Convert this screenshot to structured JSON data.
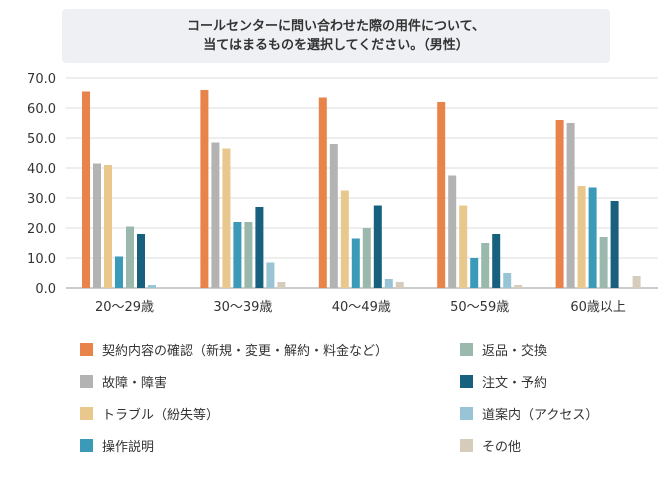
{
  "chart_data": {
    "type": "bar",
    "title_line1": "コールセンターに問い合わせた際の用件について、",
    "title_line2": "当てはまるものを選択してください。（男性）",
    "categories": [
      "20～29歳",
      "30～39歳",
      "40～49歳",
      "50～59歳",
      "60歳以上"
    ],
    "ylim": [
      0,
      70
    ],
    "yticks": [
      "0.0",
      "10.0",
      "20.0",
      "30.0",
      "40.0",
      "50.0",
      "60.0",
      "70.0"
    ],
    "grid": true,
    "legend_position": "bottom",
    "series": [
      {
        "name": "契約内容の確認（新規・変更・解約・料金など）",
        "color": "#e8834a",
        "values": [
          65.5,
          66.0,
          63.5,
          62.0,
          56.0
        ]
      },
      {
        "name": "故障・障害",
        "color": "#b3b3b3",
        "values": [
          41.5,
          48.5,
          48.0,
          37.5,
          55.0
        ]
      },
      {
        "name": "トラブル（紛失等）",
        "color": "#e8c88c",
        "values": [
          41.0,
          46.5,
          32.5,
          27.5,
          34.0
        ]
      },
      {
        "name": "操作説明",
        "color": "#3a9ab8",
        "values": [
          10.5,
          22.0,
          16.5,
          10.0,
          33.5
        ]
      },
      {
        "name": "返品・交換",
        "color": "#9ab8ac",
        "values": [
          20.5,
          22.0,
          20.0,
          15.0,
          17.0
        ]
      },
      {
        "name": "注文・予約",
        "color": "#17607e",
        "values": [
          18.0,
          27.0,
          27.5,
          18.0,
          29.0
        ]
      },
      {
        "name": "道案内（アクセス）",
        "color": "#98c4d6",
        "values": [
          1.0,
          8.5,
          3.0,
          5.0,
          0.0
        ]
      },
      {
        "name": "その他",
        "color": "#d6ccbc",
        "values": [
          0.0,
          2.0,
          2.0,
          1.0,
          4.0
        ]
      }
    ]
  }
}
